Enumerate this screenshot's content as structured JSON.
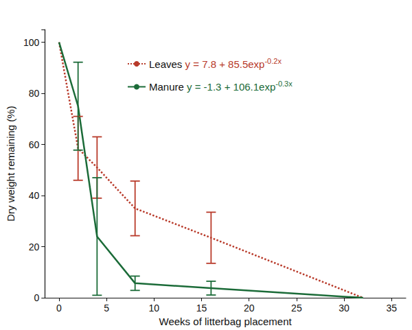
{
  "chart_data": {
    "type": "line",
    "x_label": "Weeks of litterbag placement",
    "y_label": "Dry weight remaining (%)",
    "x": [
      0,
      2,
      4,
      8,
      16,
      32
    ],
    "xlim": [
      -1.5,
      36.5
    ],
    "xticks": [
      0,
      5,
      10,
      15,
      20,
      25,
      30,
      35
    ],
    "ylim": [
      0,
      105
    ],
    "yticks": [
      0,
      20,
      40,
      60,
      80,
      100
    ],
    "grid": false,
    "legend": "top",
    "series": [
      {
        "name": "Leaves",
        "color": "#b83a2a",
        "line_style": "dotted",
        "marker": "none",
        "values": [
          100,
          58.5,
          51,
          35,
          23.5,
          0
        ],
        "error": [
          null,
          12.5,
          12,
          10.7,
          10,
          null
        ],
        "equation": "y = 7.8 + 85.5exp",
        "equation_exponent": "-0.2x"
      },
      {
        "name": "Manure",
        "color": "#1b6b38",
        "line_style": "solid",
        "marker": "none",
        "values": [
          100,
          75,
          24,
          5.7,
          3.8,
          0
        ],
        "error": [
          null,
          17.2,
          23,
          2.8,
          2.7,
          null
        ],
        "equation": "y = -1.3 + 106.1exp",
        "equation_exponent": "-0.3x"
      }
    ]
  }
}
